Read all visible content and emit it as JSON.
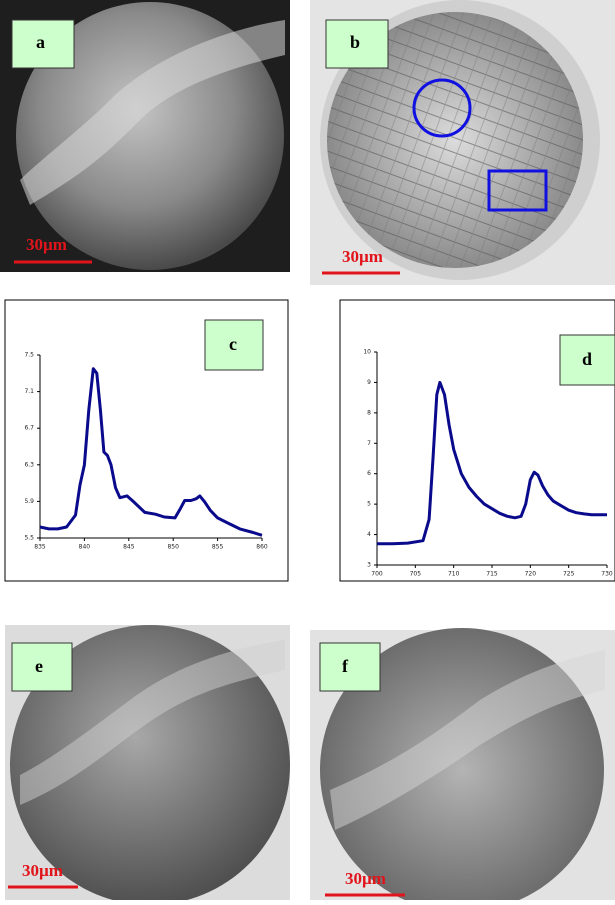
{
  "panels": [
    {
      "label": "a",
      "scale_bar": "30µm"
    },
    {
      "label": "b",
      "scale_bar": "30µm"
    },
    {
      "label": "c"
    },
    {
      "label": "d"
    },
    {
      "label": "e",
      "scale_bar": "30µm"
    },
    {
      "label": "f",
      "scale_bar": "30µm"
    }
  ],
  "chart_data": [
    {
      "type": "line",
      "color": "#0a0a8c",
      "x": [
        835,
        836,
        837,
        838,
        839,
        839.5,
        840,
        840.5,
        841,
        841.4,
        841.8,
        842.2,
        842.6,
        843,
        843.5,
        844,
        844.8,
        845.5,
        846.8,
        848,
        849,
        850.2,
        850.8,
        851.3,
        852,
        852.6,
        853,
        853.5,
        854.2,
        855,
        856,
        857.5,
        859,
        860
      ],
      "values": [
        5.62,
        5.6,
        5.6,
        5.62,
        5.75,
        6.08,
        6.3,
        6.9,
        7.35,
        7.3,
        6.9,
        6.44,
        6.4,
        6.3,
        6.05,
        5.94,
        5.96,
        5.9,
        5.78,
        5.76,
        5.73,
        5.72,
        5.82,
        5.91,
        5.91,
        5.93,
        5.96,
        5.9,
        5.8,
        5.72,
        5.67,
        5.6,
        5.56,
        5.53
      ],
      "xlim": [
        835,
        860
      ],
      "xticks": [
        835,
        840,
        845,
        850,
        855,
        860
      ],
      "ylim": [
        5.5,
        7.5
      ],
      "yticks": [
        5.5,
        5.9,
        6.3,
        6.7,
        7.1,
        7.5
      ]
    },
    {
      "type": "line",
      "color": "#0a0a8c",
      "x": [
        700,
        702,
        704,
        706,
        706.8,
        707.3,
        707.8,
        708.2,
        708.8,
        709.4,
        710,
        711,
        712,
        713,
        714,
        715,
        716,
        717,
        718,
        718.8,
        719.4,
        720,
        720.5,
        721,
        721.6,
        722.3,
        723,
        724,
        725,
        726,
        727,
        728,
        729,
        730
      ],
      "values": [
        3.7,
        3.7,
        3.72,
        3.8,
        4.5,
        6.5,
        8.6,
        9.0,
        8.6,
        7.6,
        6.8,
        6.0,
        5.55,
        5.25,
        5.0,
        4.85,
        4.7,
        4.6,
        4.55,
        4.6,
        5.0,
        5.8,
        6.05,
        5.95,
        5.6,
        5.3,
        5.1,
        4.95,
        4.8,
        4.72,
        4.68,
        4.65,
        4.65,
        4.65
      ],
      "xlim": [
        700,
        730
      ],
      "xticks": [
        700,
        705,
        710,
        715,
        720,
        725,
        730
      ],
      "ylim": [
        3,
        10
      ],
      "yticks": [
        3,
        4,
        5,
        6,
        7,
        8,
        9,
        10
      ]
    }
  ]
}
